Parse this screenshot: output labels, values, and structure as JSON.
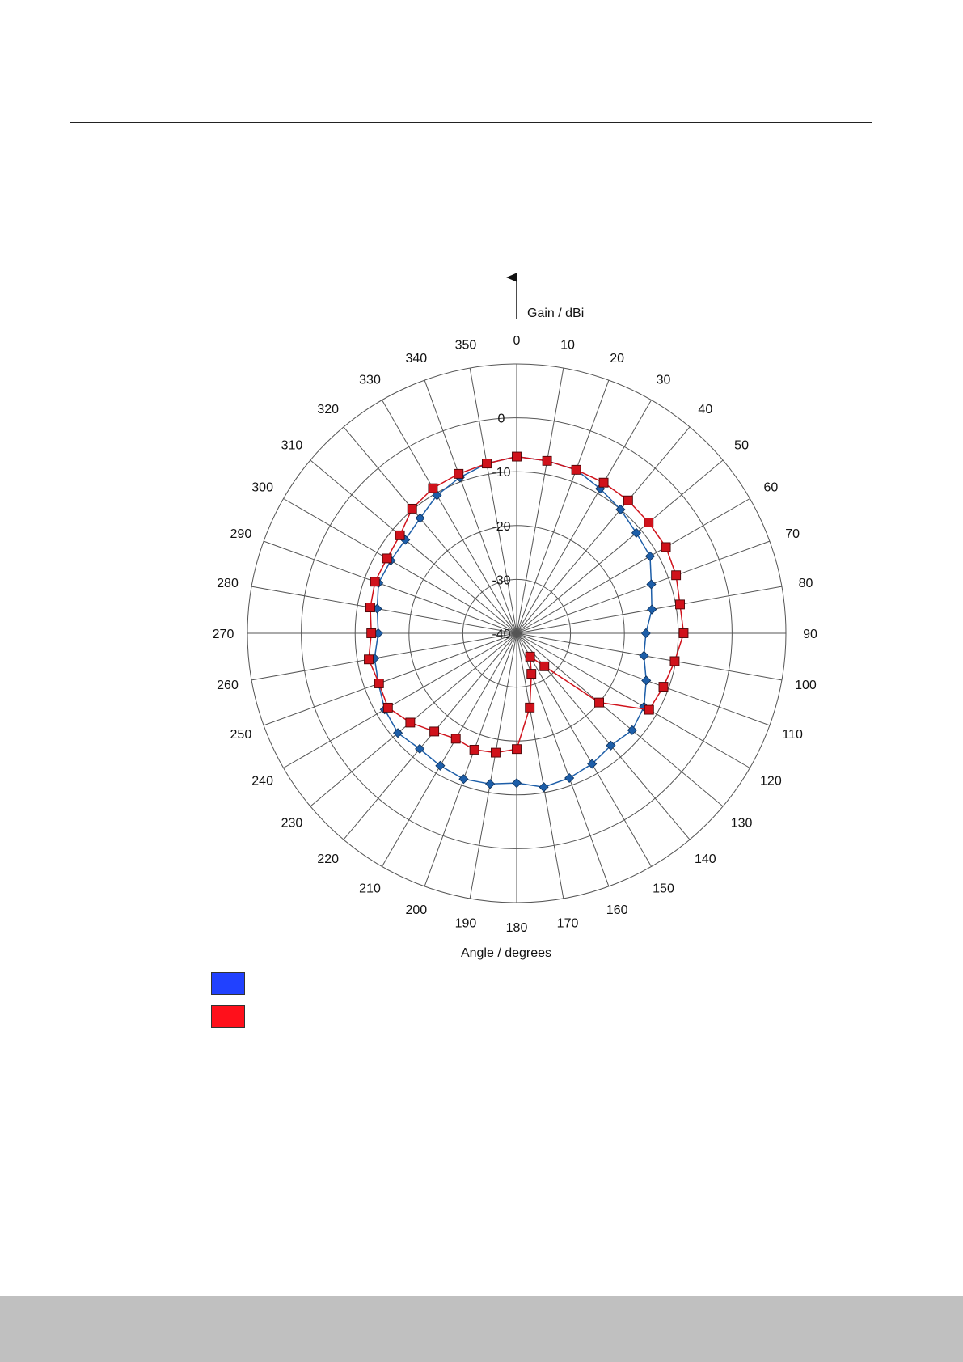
{
  "chart_data": {
    "type": "polar-line",
    "title": "",
    "radial_axis_label": "Gain / dBi",
    "angular_axis_label": "Angle / degrees",
    "radial_range": [
      -40,
      10
    ],
    "radial_ticks": [
      0,
      -10,
      -20,
      -30,
      -40
    ],
    "angle_ticks": [
      0,
      10,
      20,
      30,
      40,
      50,
      60,
      70,
      80,
      90,
      100,
      110,
      120,
      130,
      140,
      150,
      160,
      170,
      180,
      190,
      200,
      210,
      220,
      230,
      240,
      250,
      260,
      270,
      280,
      290,
      300,
      310,
      320,
      330,
      340,
      350
    ],
    "angle_tick_labels": [
      "0",
      "10",
      "20",
      "30",
      "40",
      "50",
      "60",
      "70",
      "80",
      "90",
      "100",
      "110",
      "120",
      "130",
      "140",
      "150",
      "160",
      "170",
      "180",
      "190",
      "200",
      "210",
      "220",
      "230",
      "240",
      "250",
      "260",
      "270",
      "280",
      "290",
      "300",
      "310",
      "320",
      "330",
      "340",
      "350"
    ],
    "radial_tick_labels": [
      "0",
      "-10",
      "-20",
      "-30",
      "-40"
    ],
    "angles": [
      0,
      10,
      20,
      30,
      40,
      50,
      60,
      70,
      80,
      90,
      100,
      110,
      120,
      130,
      140,
      150,
      160,
      170,
      180,
      190,
      200,
      210,
      220,
      230,
      240,
      250,
      260,
      270,
      280,
      290,
      300,
      310,
      320,
      330,
      340,
      350
    ],
    "grid": true,
    "series": [
      {
        "color": "#1d5ea8",
        "marker": "diamond",
        "values": [
          -7.2,
          -7.5,
          -7.7,
          -9.0,
          -10.0,
          -11.0,
          -11.4,
          -13.4,
          -14.5,
          -16.0,
          -16.0,
          -14.4,
          -12.7,
          -12.0,
          -12.8,
          -12.0,
          -11.4,
          -11.0,
          -12.2,
          -11.6,
          -11.2,
          -11.6,
          -12.0,
          -11.2,
          -11.7,
          -12.7,
          -13.2,
          -14.3,
          -13.7,
          -12.7,
          -13.0,
          -13.0,
          -12.1,
          -10.4,
          -9.2,
          -8.0
        ]
      },
      {
        "color": "#d0121b",
        "marker": "square",
        "values": [
          -7.2,
          -7.5,
          -7.7,
          -7.7,
          -7.8,
          -8.0,
          -8.0,
          -8.5,
          -9.2,
          -9.0,
          -10.2,
          -11.0,
          -11.6,
          -20.0,
          -32.0,
          -35.0,
          -32.0,
          -26.0,
          -18.5,
          -17.5,
          -17.0,
          -17.4,
          -16.2,
          -14.2,
          -12.4,
          -12.8,
          -12.1,
          -13.0,
          -12.4,
          -12.0,
          -12.2,
          -11.7,
          -9.8,
          -8.9,
          -8.5,
          -8.0
        ]
      }
    ],
    "legend_colors": [
      "#2141ff",
      "#ff101b"
    ]
  }
}
